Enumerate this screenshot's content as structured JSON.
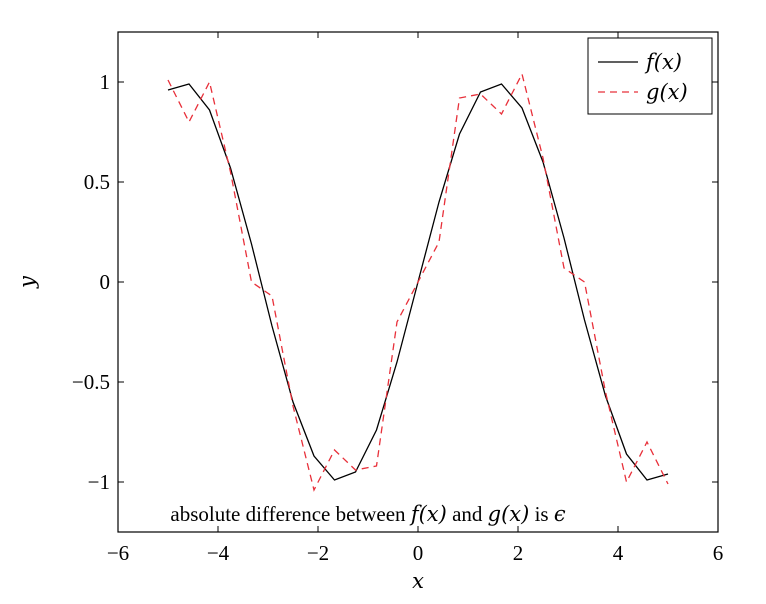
{
  "chart_data": {
    "type": "line",
    "xlabel": "x",
    "ylabel": "y",
    "xlim": [
      -6,
      6
    ],
    "ylim": [
      -1.25,
      1.25
    ],
    "x_ticks": [
      -6,
      -4,
      -2,
      0,
      2,
      4,
      6
    ],
    "x_tick_labels": [
      "−6",
      "−4",
      "−2",
      "0",
      "2",
      "4",
      "6"
    ],
    "y_ticks": [
      -1,
      -0.5,
      0,
      0.5,
      1
    ],
    "y_tick_labels": [
      "−1",
      "−0.5",
      "0",
      "0.5",
      "1"
    ],
    "grid": false,
    "legend_position": "top-right",
    "series": [
      {
        "name": "f(x)",
        "color": "#000000",
        "style": "solid",
        "x": [
          -5.0,
          -4.58,
          -4.17,
          -3.75,
          -3.33,
          -2.92,
          -2.5,
          -2.08,
          -1.67,
          -1.25,
          -0.83,
          -0.42,
          0.0,
          0.42,
          0.83,
          1.25,
          1.67,
          2.08,
          2.5,
          2.92,
          3.33,
          3.75,
          4.17,
          4.58,
          5.0
        ],
        "y": [
          0.96,
          0.99,
          0.86,
          0.57,
          0.19,
          -0.22,
          -0.6,
          -0.87,
          -0.99,
          -0.95,
          -0.74,
          -0.4,
          0.0,
          0.4,
          0.74,
          0.95,
          0.99,
          0.87,
          0.6,
          0.22,
          -0.19,
          -0.57,
          -0.86,
          -0.99,
          -0.96
        ]
      },
      {
        "name": "g(x)",
        "color": "#e8303a",
        "style": "dashed",
        "x": [
          -5.0,
          -4.58,
          -4.17,
          -3.75,
          -3.33,
          -2.92,
          -2.5,
          -2.08,
          -1.67,
          -1.25,
          -0.83,
          -0.42,
          0.0,
          0.42,
          0.83,
          1.25,
          1.67,
          2.08,
          2.5,
          2.92,
          3.33,
          3.75,
          4.17,
          4.58,
          5.0
        ],
        "y": [
          1.01,
          0.8,
          1.0,
          0.55,
          0.0,
          -0.07,
          -0.62,
          -1.04,
          -0.84,
          -0.94,
          -0.92,
          -0.2,
          0.0,
          0.2,
          0.92,
          0.94,
          0.84,
          1.04,
          0.62,
          0.07,
          0.0,
          -0.55,
          -1.0,
          -0.8,
          -1.01
        ]
      }
    ],
    "annotation": {
      "x": -1.0,
      "y": -1.16,
      "parts": [
        {
          "text": "absolute difference between ",
          "math": false
        },
        {
          "text": "f(x)",
          "math": true
        },
        {
          "text": " and ",
          "math": false
        },
        {
          "text": "g(x)",
          "math": true
        },
        {
          "text": " is ",
          "math": false
        },
        {
          "text": "ϵ",
          "math": true
        }
      ]
    }
  }
}
